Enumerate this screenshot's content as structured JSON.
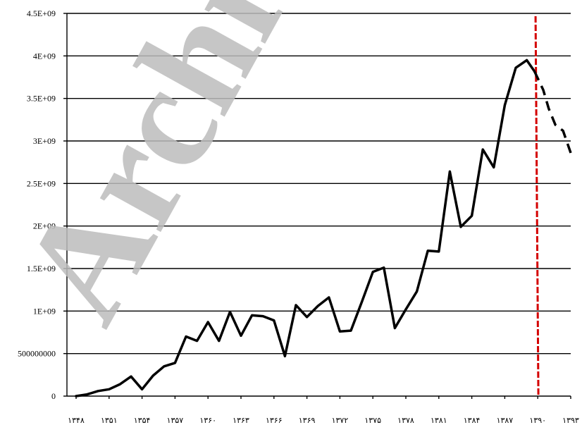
{
  "watermark": "Archive",
  "chart_data": {
    "type": "line",
    "title": "",
    "xlabel": "",
    "ylabel": "",
    "ylim": [
      0,
      4500000000
    ],
    "grid": true,
    "y_ticks": [
      {
        "value": 0,
        "label": "0"
      },
      {
        "value": 500000000,
        "label": "500000000"
      },
      {
        "value": 1000000000,
        "label": "1E+09"
      },
      {
        "value": 1500000000,
        "label": "1.5E+09"
      },
      {
        "value": 2000000000,
        "label": "2E+09"
      },
      {
        "value": 2500000000,
        "label": "2.5E+09"
      },
      {
        "value": 3000000000,
        "label": "3E+09"
      },
      {
        "value": 3500000000,
        "label": "3.5E+09"
      },
      {
        "value": 4000000000,
        "label": "4E+09"
      },
      {
        "value": 4500000000,
        "label": "4.5E+09"
      }
    ],
    "x_ticks": [
      {
        "value": 1348,
        "label": "۱۳۴۸"
      },
      {
        "value": 1351,
        "label": "۱۳۵۱"
      },
      {
        "value": 1354,
        "label": "۱۳۵۴"
      },
      {
        "value": 1357,
        "label": "۱۳۵۷"
      },
      {
        "value": 1360,
        "label": "۱۳۶۰"
      },
      {
        "value": 1363,
        "label": "۱۳۶۳"
      },
      {
        "value": 1366,
        "label": "۱۳۶۶"
      },
      {
        "value": 1369,
        "label": "۱۳۶۹"
      },
      {
        "value": 1372,
        "label": "۱۳۷۲"
      },
      {
        "value": 1375,
        "label": "۱۳۷۵"
      },
      {
        "value": 1378,
        "label": "۱۳۷۸"
      },
      {
        "value": 1381,
        "label": "۱۳۸۱"
      },
      {
        "value": 1384,
        "label": "۱۳۸۴"
      },
      {
        "value": 1387,
        "label": "۱۳۸۷"
      },
      {
        "value": 1390,
        "label": "۱۳۹۰"
      },
      {
        "value": 1393,
        "label": "۱۳۹۳"
      }
    ],
    "xlim": [
      1348,
      1393
    ],
    "divider_x": 1389.8,
    "divider_color": "#d40000",
    "series": [
      {
        "style": "solid",
        "color": "#000000",
        "x": [
          1348,
          1349,
          1350,
          1351,
          1352,
          1353,
          1354,
          1355,
          1356,
          1357,
          1358,
          1359,
          1360,
          1361,
          1362,
          1363,
          1364,
          1365,
          1366,
          1367,
          1368,
          1369,
          1370,
          1371,
          1372,
          1373,
          1374,
          1375,
          1376,
          1377,
          1378,
          1379,
          1380,
          1381,
          1382,
          1383,
          1384,
          1385,
          1386,
          1387,
          1388,
          1389,
          1389.7
        ],
        "y": [
          0,
          20000000,
          60000000,
          80000000,
          140000000,
          230000000,
          80000000,
          240000000,
          350000000,
          390000000,
          700000000,
          650000000,
          870000000,
          650000000,
          990000000,
          710000000,
          950000000,
          940000000,
          890000000,
          470000000,
          1070000000,
          930000000,
          1060000000,
          1160000000,
          760000000,
          770000000,
          1110000000,
          1460000000,
          1510000000,
          800000000,
          1020000000,
          1230000000,
          1710000000,
          1700000000,
          2640000000,
          1990000000,
          2120000000,
          2900000000,
          2690000000,
          3420000000,
          3860000000,
          3950000000,
          3820000000
        ]
      },
      {
        "style": "dashed",
        "color": "#000000",
        "x": [
          1389.7,
          1390.5,
          1391,
          1391.6,
          1392.3,
          1393
        ],
        "y": [
          3820000000,
          3600000000,
          3380000000,
          3190000000,
          3120000000,
          2860000000
        ]
      }
    ]
  }
}
